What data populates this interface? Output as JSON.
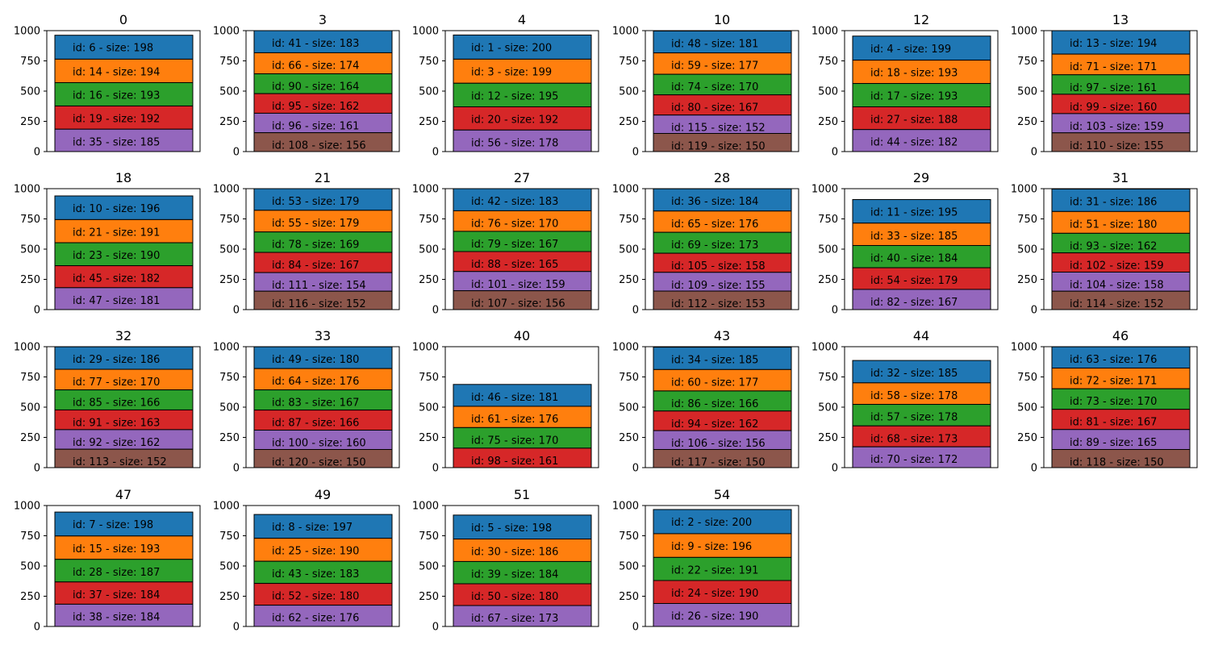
{
  "chart_data": {
    "type": "bar",
    "stacked": true,
    "ylim": [
      0,
      1000
    ],
    "yticks": [
      0,
      250,
      500,
      750,
      1000
    ],
    "grid": false,
    "label_prefix": "id: ",
    "label_sep": " - size: ",
    "segment_colors": [
      "#1f77b4",
      "#ff7f0e",
      "#2ca02c",
      "#d62728",
      "#9467bd",
      "#8c564b"
    ],
    "panels": [
      {
        "title": "0",
        "items": [
          {
            "id": 6,
            "size": 198
          },
          {
            "id": 14,
            "size": 194
          },
          {
            "id": 16,
            "size": 193
          },
          {
            "id": 19,
            "size": 192
          },
          {
            "id": 35,
            "size": 185
          }
        ]
      },
      {
        "title": "3",
        "items": [
          {
            "id": 41,
            "size": 183
          },
          {
            "id": 66,
            "size": 174
          },
          {
            "id": 90,
            "size": 164
          },
          {
            "id": 95,
            "size": 162
          },
          {
            "id": 96,
            "size": 161
          },
          {
            "id": 108,
            "size": 156
          }
        ]
      },
      {
        "title": "4",
        "items": [
          {
            "id": 1,
            "size": 200
          },
          {
            "id": 3,
            "size": 199
          },
          {
            "id": 12,
            "size": 195
          },
          {
            "id": 20,
            "size": 192
          },
          {
            "id": 56,
            "size": 178
          }
        ]
      },
      {
        "title": "10",
        "items": [
          {
            "id": 48,
            "size": 181
          },
          {
            "id": 59,
            "size": 177
          },
          {
            "id": 74,
            "size": 170
          },
          {
            "id": 80,
            "size": 167
          },
          {
            "id": 115,
            "size": 152
          },
          {
            "id": 119,
            "size": 150
          }
        ]
      },
      {
        "title": "12",
        "items": [
          {
            "id": 4,
            "size": 199
          },
          {
            "id": 18,
            "size": 193
          },
          {
            "id": 17,
            "size": 193
          },
          {
            "id": 27,
            "size": 188
          },
          {
            "id": 44,
            "size": 182
          }
        ]
      },
      {
        "title": "13",
        "items": [
          {
            "id": 13,
            "size": 194
          },
          {
            "id": 71,
            "size": 171
          },
          {
            "id": 97,
            "size": 161
          },
          {
            "id": 99,
            "size": 160
          },
          {
            "id": 103,
            "size": 159
          },
          {
            "id": 110,
            "size": 155
          }
        ]
      },
      {
        "title": "18",
        "items": [
          {
            "id": 10,
            "size": 196
          },
          {
            "id": 21,
            "size": 191
          },
          {
            "id": 23,
            "size": 190
          },
          {
            "id": 45,
            "size": 182
          },
          {
            "id": 47,
            "size": 181
          }
        ]
      },
      {
        "title": "21",
        "items": [
          {
            "id": 53,
            "size": 179
          },
          {
            "id": 55,
            "size": 179
          },
          {
            "id": 78,
            "size": 169
          },
          {
            "id": 84,
            "size": 167
          },
          {
            "id": 111,
            "size": 154
          },
          {
            "id": 116,
            "size": 152
          }
        ]
      },
      {
        "title": "27",
        "items": [
          {
            "id": 42,
            "size": 183
          },
          {
            "id": 76,
            "size": 170
          },
          {
            "id": 79,
            "size": 167
          },
          {
            "id": 88,
            "size": 165
          },
          {
            "id": 101,
            "size": 159
          },
          {
            "id": 107,
            "size": 156
          }
        ]
      },
      {
        "title": "28",
        "items": [
          {
            "id": 36,
            "size": 184
          },
          {
            "id": 65,
            "size": 176
          },
          {
            "id": 69,
            "size": 173
          },
          {
            "id": 105,
            "size": 158
          },
          {
            "id": 109,
            "size": 155
          },
          {
            "id": 112,
            "size": 153
          }
        ]
      },
      {
        "title": "29",
        "items": [
          {
            "id": 11,
            "size": 195
          },
          {
            "id": 33,
            "size": 185
          },
          {
            "id": 40,
            "size": 184
          },
          {
            "id": 54,
            "size": 179
          },
          {
            "id": 82,
            "size": 167
          }
        ]
      },
      {
        "title": "31",
        "items": [
          {
            "id": 31,
            "size": 186
          },
          {
            "id": 51,
            "size": 180
          },
          {
            "id": 93,
            "size": 162
          },
          {
            "id": 102,
            "size": 159
          },
          {
            "id": 104,
            "size": 158
          },
          {
            "id": 114,
            "size": 152
          }
        ]
      },
      {
        "title": "32",
        "items": [
          {
            "id": 29,
            "size": 186
          },
          {
            "id": 77,
            "size": 170
          },
          {
            "id": 85,
            "size": 166
          },
          {
            "id": 91,
            "size": 163
          },
          {
            "id": 92,
            "size": 162
          },
          {
            "id": 113,
            "size": 152
          }
        ]
      },
      {
        "title": "33",
        "items": [
          {
            "id": 49,
            "size": 180
          },
          {
            "id": 64,
            "size": 176
          },
          {
            "id": 83,
            "size": 167
          },
          {
            "id": 87,
            "size": 166
          },
          {
            "id": 100,
            "size": 160
          },
          {
            "id": 120,
            "size": 150
          }
        ]
      },
      {
        "title": "40",
        "items": [
          {
            "id": 46,
            "size": 181
          },
          {
            "id": 61,
            "size": 176
          },
          {
            "id": 75,
            "size": 170
          },
          {
            "id": 98,
            "size": 161
          }
        ]
      },
      {
        "title": "43",
        "items": [
          {
            "id": 34,
            "size": 185
          },
          {
            "id": 60,
            "size": 177
          },
          {
            "id": 86,
            "size": 166
          },
          {
            "id": 94,
            "size": 162
          },
          {
            "id": 106,
            "size": 156
          },
          {
            "id": 117,
            "size": 150
          }
        ]
      },
      {
        "title": "44",
        "items": [
          {
            "id": 32,
            "size": 185
          },
          {
            "id": 58,
            "size": 178
          },
          {
            "id": 57,
            "size": 178
          },
          {
            "id": 68,
            "size": 173
          },
          {
            "id": 70,
            "size": 172
          }
        ]
      },
      {
        "title": "46",
        "items": [
          {
            "id": 63,
            "size": 176
          },
          {
            "id": 72,
            "size": 171
          },
          {
            "id": 73,
            "size": 170
          },
          {
            "id": 81,
            "size": 167
          },
          {
            "id": 89,
            "size": 165
          },
          {
            "id": 118,
            "size": 150
          }
        ]
      },
      {
        "title": "47",
        "items": [
          {
            "id": 7,
            "size": 198
          },
          {
            "id": 15,
            "size": 193
          },
          {
            "id": 28,
            "size": 187
          },
          {
            "id": 37,
            "size": 184
          },
          {
            "id": 38,
            "size": 184
          }
        ]
      },
      {
        "title": "49",
        "items": [
          {
            "id": 8,
            "size": 197
          },
          {
            "id": 25,
            "size": 190
          },
          {
            "id": 43,
            "size": 183
          },
          {
            "id": 52,
            "size": 180
          },
          {
            "id": 62,
            "size": 176
          }
        ]
      },
      {
        "title": "51",
        "items": [
          {
            "id": 5,
            "size": 198
          },
          {
            "id": 30,
            "size": 186
          },
          {
            "id": 39,
            "size": 184
          },
          {
            "id": 50,
            "size": 180
          },
          {
            "id": 67,
            "size": 173
          }
        ]
      },
      {
        "title": "54",
        "items": [
          {
            "id": 2,
            "size": 200
          },
          {
            "id": 9,
            "size": 196
          },
          {
            "id": 22,
            "size": 191
          },
          {
            "id": 24,
            "size": 190
          },
          {
            "id": 26,
            "size": 190
          }
        ]
      }
    ]
  }
}
